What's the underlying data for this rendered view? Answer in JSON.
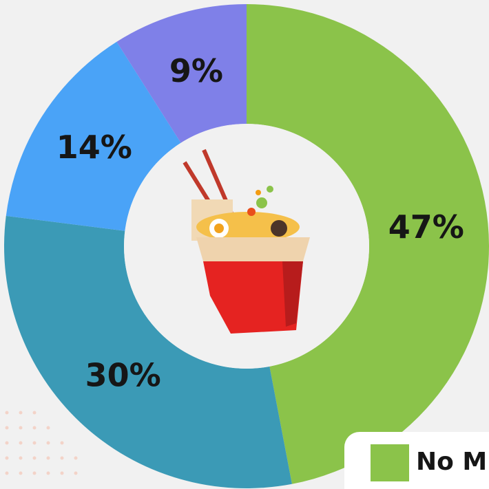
{
  "chart_data": {
    "type": "donut",
    "categories": [
      "No M",
      null,
      null,
      null
    ],
    "values": [
      47,
      30,
      14,
      9
    ],
    "value_labels": [
      "47%",
      "30%",
      "14%",
      "9%"
    ],
    "colors": [
      "#8bc34a",
      "#3b9ab6",
      "#4aa3f7",
      "#7f80e8"
    ],
    "legend": "bottom-right"
  }
}
